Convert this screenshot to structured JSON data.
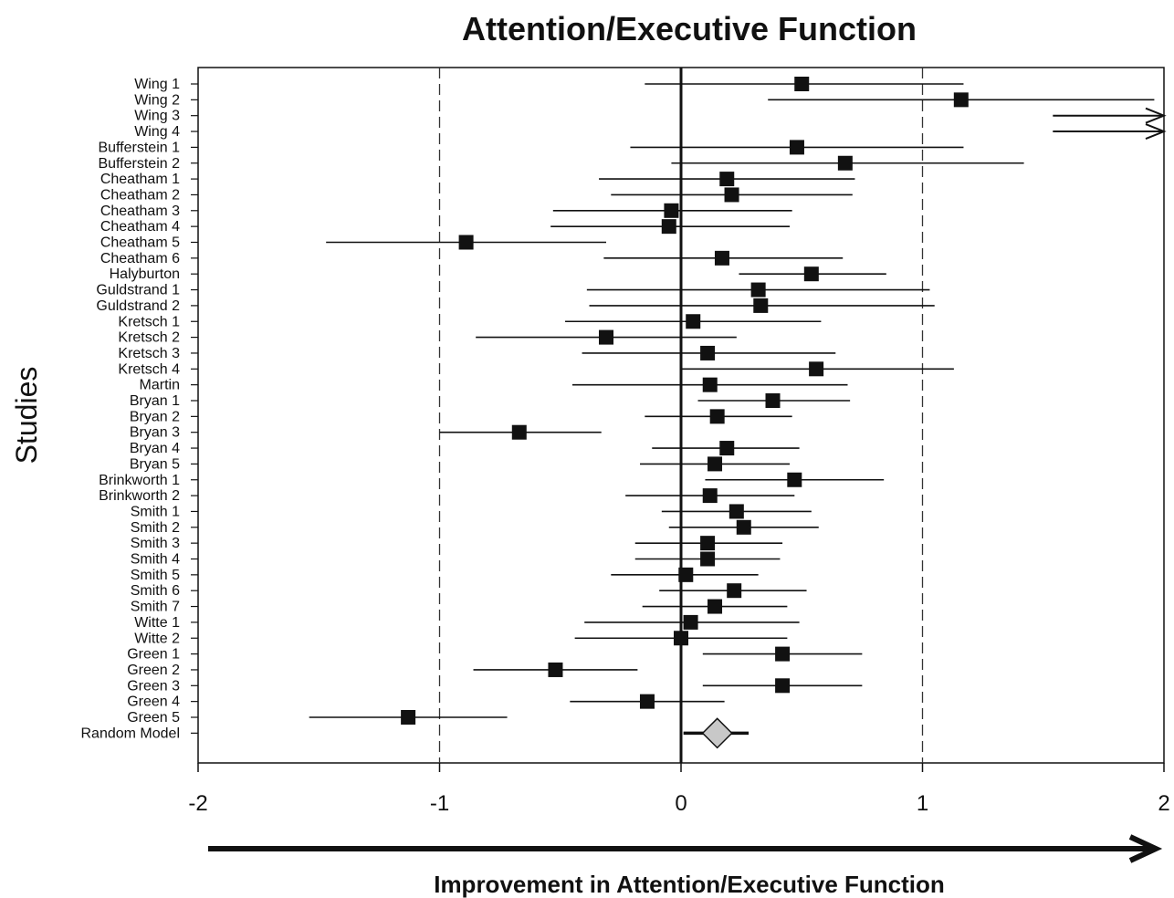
{
  "chart_data": {
    "type": "scatter",
    "subtype": "forest-plot",
    "title": "Attention/Executive Function",
    "xlabel": "Improvement in Attention/Executive Function",
    "ylabel": "Studies",
    "xlim": [
      -2,
      2
    ],
    "xticks": [
      -2,
      -1,
      0,
      1,
      2
    ],
    "reference_lines": [
      -1,
      1
    ],
    "zero_line": 0,
    "grid": false,
    "legend": "none",
    "colors": {
      "marker": "#111111",
      "summary": "#c8c8c8",
      "line": "#111111"
    },
    "studies": [
      {
        "label": "Wing 1",
        "effect": 0.5,
        "lower": -0.15,
        "upper": 1.17
      },
      {
        "label": "Wing 2",
        "effect": 1.16,
        "lower": 0.36,
        "upper": 1.96
      },
      {
        "label": "Wing 3",
        "effect": null,
        "lower": 1.54,
        "upper": 2.0,
        "truncated": true
      },
      {
        "label": "Wing 4",
        "effect": null,
        "lower": 1.54,
        "upper": 2.0,
        "truncated": true
      },
      {
        "label": "Bufferstein 1",
        "effect": 0.48,
        "lower": -0.21,
        "upper": 1.17
      },
      {
        "label": "Bufferstein 2",
        "effect": 0.68,
        "lower": -0.04,
        "upper": 1.42
      },
      {
        "label": "Cheatham 1",
        "effect": 0.19,
        "lower": -0.34,
        "upper": 0.72
      },
      {
        "label": "Cheatham 2",
        "effect": 0.21,
        "lower": -0.29,
        "upper": 0.71
      },
      {
        "label": "Cheatham 3",
        "effect": -0.04,
        "lower": -0.53,
        "upper": 0.46
      },
      {
        "label": "Cheatham 4",
        "effect": -0.05,
        "lower": -0.54,
        "upper": 0.45
      },
      {
        "label": "Cheatham 5",
        "effect": -0.89,
        "lower": -1.47,
        "upper": -0.31
      },
      {
        "label": "Cheatham 6",
        "effect": 0.17,
        "lower": -0.32,
        "upper": 0.67
      },
      {
        "label": "Halyburton",
        "effect": 0.54,
        "lower": 0.24,
        "upper": 0.85
      },
      {
        "label": "Guldstrand 1",
        "effect": 0.32,
        "lower": -0.39,
        "upper": 1.03
      },
      {
        "label": "Guldstrand 2",
        "effect": 0.33,
        "lower": -0.38,
        "upper": 1.05
      },
      {
        "label": "Kretsch 1",
        "effect": 0.05,
        "lower": -0.48,
        "upper": 0.58
      },
      {
        "label": "Kretsch 2",
        "effect": -0.31,
        "lower": -0.85,
        "upper": 0.23
      },
      {
        "label": "Kretsch 3",
        "effect": 0.11,
        "lower": -0.41,
        "upper": 0.64
      },
      {
        "label": "Kretsch 4",
        "effect": 0.56,
        "lower": 0.0,
        "upper": 1.13
      },
      {
        "label": "Martin",
        "effect": 0.12,
        "lower": -0.45,
        "upper": 0.69
      },
      {
        "label": "Bryan 1",
        "effect": 0.38,
        "lower": 0.07,
        "upper": 0.7
      },
      {
        "label": "Bryan 2",
        "effect": 0.15,
        "lower": -0.15,
        "upper": 0.46
      },
      {
        "label": "Bryan 3",
        "effect": -0.67,
        "lower": -1.0,
        "upper": -0.33
      },
      {
        "label": "Bryan 4",
        "effect": 0.19,
        "lower": -0.12,
        "upper": 0.49
      },
      {
        "label": "Bryan 5",
        "effect": 0.14,
        "lower": -0.17,
        "upper": 0.45
      },
      {
        "label": "Brinkworth 1",
        "effect": 0.47,
        "lower": 0.1,
        "upper": 0.84
      },
      {
        "label": "Brinkworth 2",
        "effect": 0.12,
        "lower": -0.23,
        "upper": 0.47
      },
      {
        "label": "Smith 1",
        "effect": 0.23,
        "lower": -0.08,
        "upper": 0.54
      },
      {
        "label": "Smith 2",
        "effect": 0.26,
        "lower": -0.05,
        "upper": 0.57
      },
      {
        "label": "Smith 3",
        "effect": 0.11,
        "lower": -0.19,
        "upper": 0.42
      },
      {
        "label": "Smith 4",
        "effect": 0.11,
        "lower": -0.19,
        "upper": 0.41
      },
      {
        "label": "Smith 5",
        "effect": 0.02,
        "lower": -0.29,
        "upper": 0.32
      },
      {
        "label": "Smith 6",
        "effect": 0.22,
        "lower": -0.09,
        "upper": 0.52
      },
      {
        "label": "Smith 7",
        "effect": 0.14,
        "lower": -0.16,
        "upper": 0.44
      },
      {
        "label": "Witte 1",
        "effect": 0.04,
        "lower": -0.4,
        "upper": 0.49
      },
      {
        "label": "Witte 2",
        "effect": 0.0,
        "lower": -0.44,
        "upper": 0.44
      },
      {
        "label": "Green 1",
        "effect": 0.42,
        "lower": 0.09,
        "upper": 0.75
      },
      {
        "label": "Green 2",
        "effect": -0.52,
        "lower": -0.86,
        "upper": -0.18
      },
      {
        "label": "Green 3",
        "effect": 0.42,
        "lower": 0.09,
        "upper": 0.75
      },
      {
        "label": "Green 4",
        "effect": -0.14,
        "lower": -0.46,
        "upper": 0.18
      },
      {
        "label": "Green 5",
        "effect": -1.13,
        "lower": -1.54,
        "upper": -0.72
      }
    ],
    "summary": {
      "label": "Random Model",
      "effect": 0.15,
      "lower": 0.01,
      "upper": 0.28
    }
  }
}
